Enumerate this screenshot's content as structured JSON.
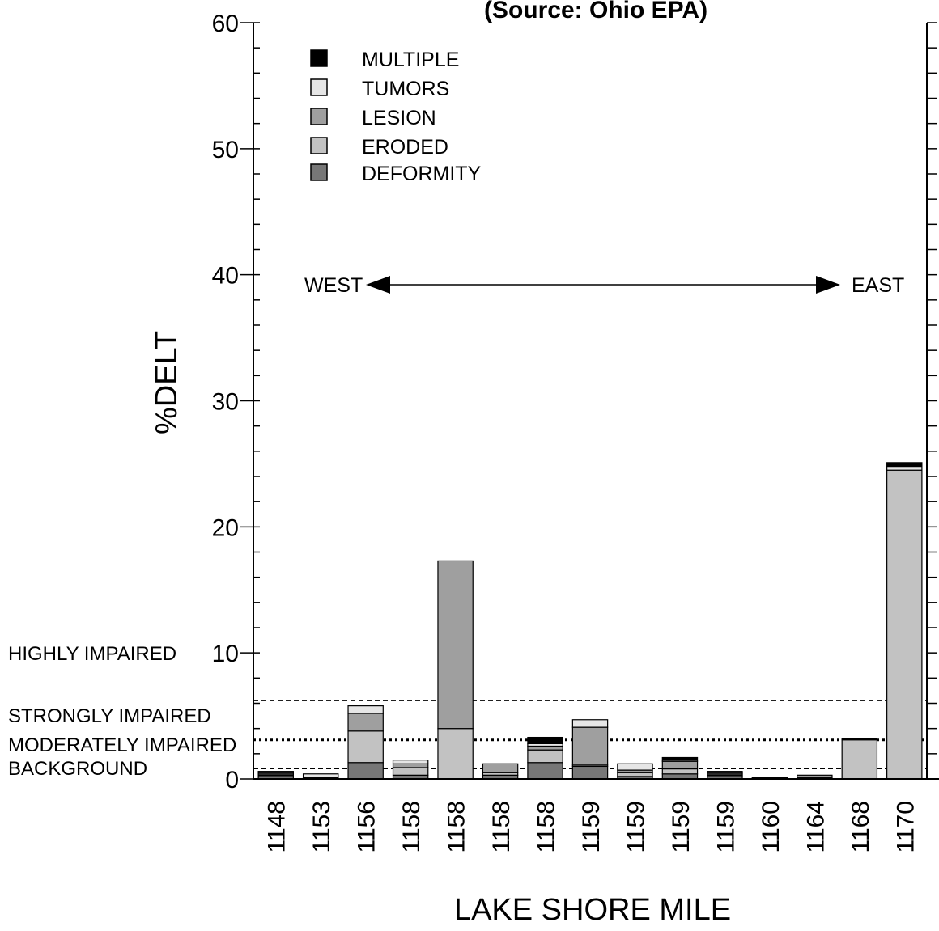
{
  "chart_data": {
    "type": "bar",
    "stacked": true,
    "title": "(Source: Ohio EPA)",
    "xlabel": "LAKE SHORE MILE",
    "ylabel": "%DELT",
    "ylim": [
      0,
      60
    ],
    "yticks": [
      0,
      10,
      20,
      30,
      40,
      50,
      60
    ],
    "categories": [
      "1148",
      "1153",
      "1156",
      "1158",
      "1158",
      "1158",
      "1158",
      "1159",
      "1159",
      "1159",
      "1159",
      "1160",
      "1164",
      "1168",
      "1170"
    ],
    "series": [
      {
        "name": "DEFORMITY",
        "color": "#777777",
        "values": [
          0.2,
          0,
          1.3,
          0.3,
          0,
          0.3,
          1.3,
          1.0,
          0.2,
          0.4,
          0.2,
          0,
          0,
          0,
          0
        ]
      },
      {
        "name": "ERODED",
        "color": "#c2c2c2",
        "values": [
          0.1,
          0.1,
          2.5,
          0.6,
          4.0,
          0.2,
          1.0,
          0.1,
          0.3,
          0.4,
          0.1,
          0.1,
          0.1,
          3.1,
          24.5
        ]
      },
      {
        "name": "LESION",
        "color": "#9f9f9f",
        "values": [
          0.1,
          0,
          1.4,
          0.3,
          13.3,
          0.7,
          0.3,
          3.0,
          0.2,
          0.6,
          0.1,
          0,
          0.2,
          0,
          0
        ]
      },
      {
        "name": "TUMORS",
        "color": "#e6e6e6",
        "values": [
          0.1,
          0.3,
          0.6,
          0.3,
          0,
          0,
          0.2,
          0.6,
          0.5,
          0.1,
          0.1,
          0,
          0,
          0,
          0.3
        ]
      },
      {
        "name": "MULTIPLE",
        "color": "#000000",
        "values": [
          0.1,
          0,
          0,
          0,
          0,
          0,
          0.5,
          0,
          0,
          0.2,
          0.1,
          0,
          0,
          0.1,
          0.3
        ]
      }
    ],
    "legend_order": [
      "MULTIPLE",
      "TUMORS",
      "LESION",
      "ERODED",
      "DEFORMITY"
    ],
    "legend_position": "top-left",
    "thresholds": [
      {
        "label": "HIGHLY IMPAIRED",
        "value": 6.2,
        "style": "dashed"
      },
      {
        "label": "STRONGLY IMPAIRED",
        "value": 3.1,
        "style": "dotted"
      },
      {
        "label": "MODERATELY IMPAIRED",
        "value": 0.8,
        "style": "dashed"
      },
      {
        "label": "BACKGROUND",
        "value": 0
      }
    ],
    "direction_labels": {
      "west": "WEST",
      "east": "EAST"
    },
    "grid": false
  }
}
